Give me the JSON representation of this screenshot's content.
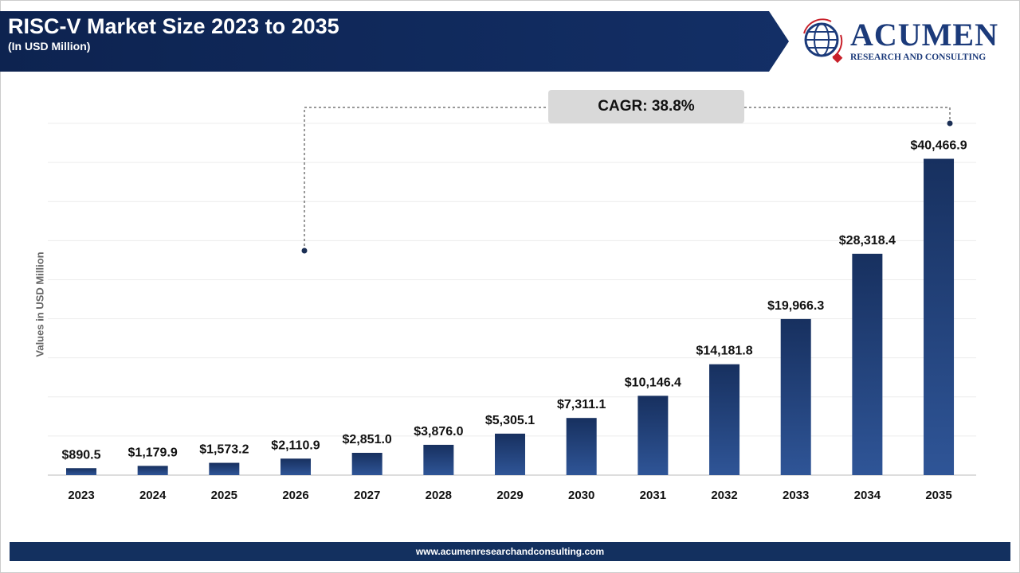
{
  "header": {
    "title": "RISC-V Market Size 2023 to 2035",
    "subtitle": "(In USD Million)"
  },
  "logo": {
    "name": "ACUMEN",
    "tagline": "RESEARCH AND CONSULTING"
  },
  "annotation": {
    "cagr": "CAGR: 38.8%"
  },
  "footer": {
    "url": "www.acumenresearchandconsulting.com"
  },
  "colors": {
    "bar_top": "#17305f",
    "bar_bottom": "#2f5597",
    "banner": "#0d2350",
    "accent_red": "#c8202a"
  },
  "chart_data": {
    "type": "bar",
    "title": "RISC-V Market Size 2023 to 2035",
    "subtitle": "(In USD Million)",
    "ylabel": "Values in USD Million",
    "xlabel": "",
    "categories": [
      "2023",
      "2024",
      "2025",
      "2026",
      "2027",
      "2028",
      "2029",
      "2030",
      "2031",
      "2032",
      "2033",
      "2034",
      "2035"
    ],
    "values": [
      890.5,
      1179.9,
      1573.2,
      2110.9,
      2851.0,
      3876.0,
      5305.1,
      7311.1,
      10146.4,
      14181.8,
      19966.3,
      28318.4,
      40466.9
    ],
    "value_labels": [
      "$890.5",
      "$1,179.9",
      "$1,573.2",
      "$2,110.9",
      "$2,851.0",
      "$3,876.0",
      "$5,305.1",
      "$7,311.1",
      "$10,146.4",
      "$14,181.8",
      "$19,966.3",
      "$28,318.4",
      "$40,466.9"
    ],
    "ylim": [
      0,
      45000
    ],
    "grid": true,
    "gridline_step": 5000
  }
}
